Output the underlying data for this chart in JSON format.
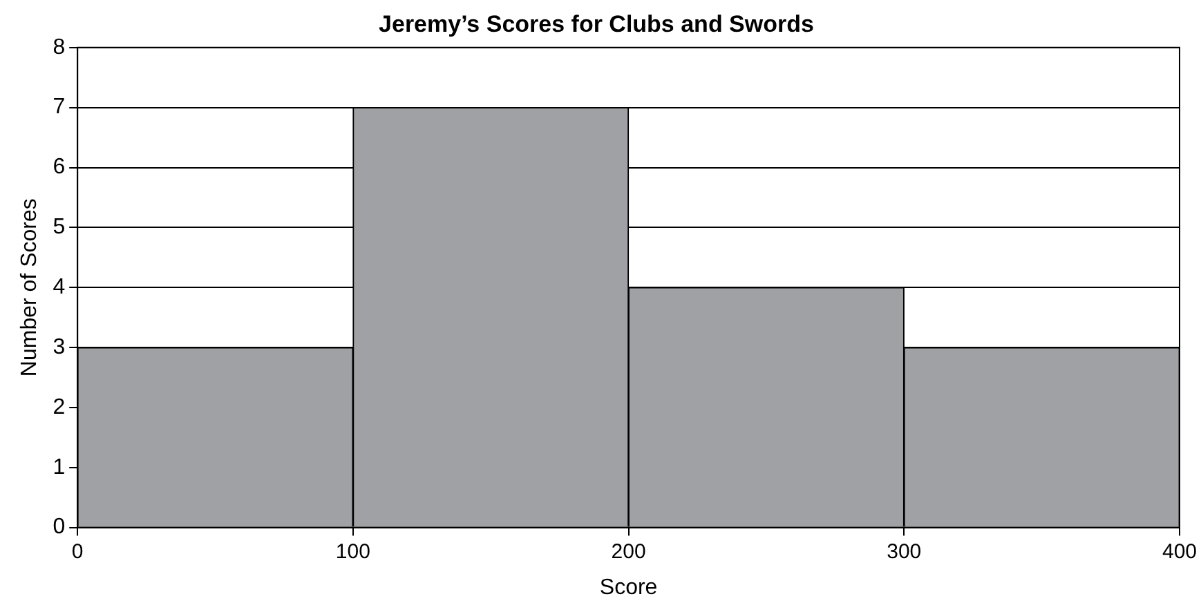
{
  "chart_data": {
    "type": "histogram",
    "title": "Jeremy’s Scores for Clubs and Swords",
    "xlabel": "Score",
    "ylabel": "Number of Scores",
    "bins": [
      0,
      100,
      200,
      300,
      400
    ],
    "values": [
      3,
      7,
      4,
      3
    ],
    "color": "#a0a1a5",
    "xlim": [
      0,
      400
    ],
    "xticks": [
      0,
      100,
      200,
      300,
      400
    ],
    "ylim": [
      0,
      8
    ],
    "yticks": [
      0,
      1,
      2,
      3,
      4,
      5,
      6,
      7,
      8
    ],
    "grid": "y",
    "legend": false
  }
}
